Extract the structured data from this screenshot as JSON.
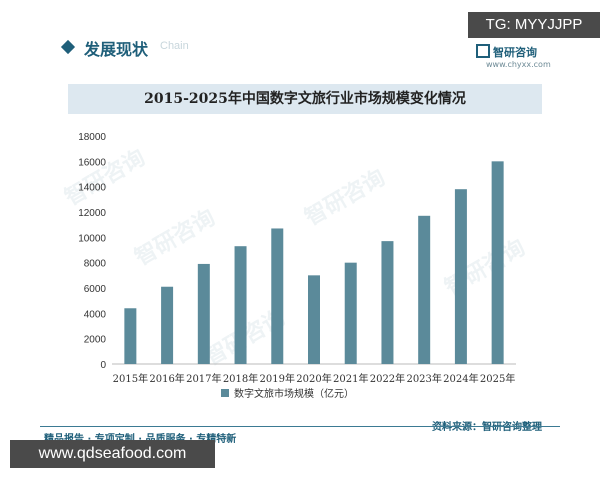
{
  "header": {
    "section_title": "发展现状",
    "section_title_en": "Chain",
    "tg_label": "TG: MYYJJPP",
    "brand": "智研咨询",
    "brand_url": "www.chyxx.com"
  },
  "watermark": "智研咨询",
  "footer": {
    "left_text": "精品报告 · 专项定制 · 品质服务 · 专精特新",
    "right_text": "资料来源：智研咨询整理",
    "url_text": "www.qdseafood.com"
  },
  "colors": {
    "bar": "#5b8a9a",
    "accent": "#1f5f7a",
    "title_band": "#dde8f0"
  },
  "chart_data": {
    "type": "bar",
    "title": "2015-2025年中国数字文旅行业市场规模变化情况",
    "categories": [
      "2015年",
      "2016年",
      "2017年",
      "2018年",
      "2019年",
      "2020年",
      "2021年",
      "2022年",
      "2023年",
      "2024年",
      "2025年"
    ],
    "series": [
      {
        "name": "数字文旅市场规模（亿元）",
        "values": [
          4400,
          6100,
          7900,
          9300,
          10700,
          7000,
          8000,
          9700,
          11700,
          13800,
          16000
        ]
      }
    ],
    "ylim": [
      0,
      18000
    ],
    "yticks": [
      0,
      2000,
      4000,
      6000,
      8000,
      10000,
      12000,
      14000,
      16000,
      18000
    ],
    "grid": false,
    "legend_position": "bottom"
  }
}
